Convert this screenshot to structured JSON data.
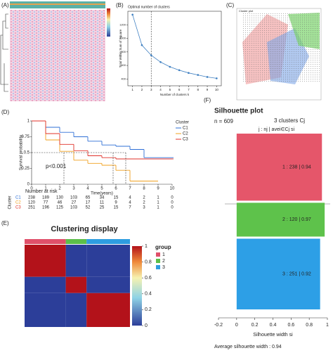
{
  "chart_data": [
    {
      "type": "heatmap_image",
      "label": "(A)"
    },
    {
      "type": "line",
      "label": "(B)",
      "title": "Optimal number of clusters",
      "xlabel": "Number of clusters k",
      "ylabel": "Total Within Sum of Square",
      "x": [
        1,
        2,
        3,
        4,
        5,
        6,
        7,
        8,
        9,
        10
      ],
      "values": [
        1350,
        900,
        750,
        650,
        580,
        530,
        490,
        460,
        430,
        410
      ],
      "color": "#3e7fc1",
      "xlim": [
        0.5,
        10.5
      ],
      "xticks": [
        1,
        2,
        3,
        4,
        5,
        6,
        7,
        8,
        9,
        10
      ],
      "ylim": [
        300,
        1400
      ],
      "yticks": [
        400,
        600,
        800,
        1000,
        1200
      ],
      "vline": 3
    },
    {
      "type": "cluster_image",
      "label": "(C)",
      "title": "Cluster plot"
    },
    {
      "type": "survival",
      "label": "(D)",
      "xlabel": "Time(years)",
      "ylabel": "Survival probability",
      "annotation": "p<0.001",
      "legend_title": "Cluster",
      "x": [
        0,
        1,
        2,
        3,
        4,
        5,
        6,
        7,
        8,
        9,
        10
      ],
      "series": [
        {
          "name": "C1",
          "color": "#2e6fd6",
          "values": [
            1,
            0.9,
            0.82,
            0.75,
            0.68,
            0.62,
            0.6,
            0.55,
            0.42,
            0.42,
            0.42
          ]
        },
        {
          "name": "C2",
          "color": "#f0a01e",
          "values": [
            1,
            0.7,
            0.52,
            0.38,
            0.33,
            0.3,
            0.22,
            0.05,
            0.05,
            null,
            null
          ]
        },
        {
          "name": "C3",
          "color": "#e0322a",
          "values": [
            1,
            0.8,
            0.63,
            0.53,
            0.45,
            0.42,
            0.4,
            0.4,
            0.4,
            0.4,
            0.4
          ]
        }
      ],
      "xlim": [
        0,
        10
      ],
      "xticks": [
        0,
        1,
        2,
        3,
        4,
        5,
        6,
        7,
        8,
        9,
        10
      ],
      "ylim": [
        0,
        1
      ],
      "yticks": [
        0,
        0.25,
        0.5,
        0.75,
        1
      ],
      "median_x": [
        2.3,
        5.8,
        6.7
      ],
      "median_y": 0.5,
      "risk_table": {
        "title": "Number at risk",
        "ylabel": "Cluster",
        "rows": [
          [
            238,
            189,
            130,
            103,
            65,
            34,
            15,
            4,
            2,
            1,
            0
          ],
          [
            120,
            77,
            46,
            27,
            17,
            11,
            9,
            4,
            2,
            1,
            0
          ],
          [
            251,
            196,
            125,
            103,
            52,
            25,
            15,
            7,
            3,
            1,
            0
          ]
        ]
      }
    },
    {
      "type": "consensus",
      "label": "(E)",
      "title": "Clustering display",
      "legend_title": "group",
      "groups": [
        "1",
        "2",
        "3"
      ],
      "group_sizes": [
        238,
        120,
        251
      ],
      "group_colors": [
        "#e0506a",
        "#5cbf4a",
        "#2e9de0"
      ],
      "matrix": [
        [
          1,
          0,
          0
        ],
        [
          0,
          1,
          0
        ],
        [
          0,
          0,
          1
        ]
      ],
      "zlim": [
        0,
        1
      ],
      "zticks": [
        0,
        0.2,
        0.4,
        0.6,
        0.8,
        1
      ]
    },
    {
      "type": "silhouette",
      "label": "(F)",
      "title": "Silhouette plot",
      "n_label": "n = 609",
      "clusters_label": "3  clusters  Cj",
      "column_label": "j :  nj | avei∈Cj  si",
      "xlabel": "Silhouette width si",
      "footer": "Average silhouette width :  0.94",
      "categories": [
        "1",
        "2",
        "3"
      ],
      "sizes": [
        238,
        120,
        251
      ],
      "values": [
        0.94,
        0.97,
        0.92
      ],
      "value_labels": [
        "1 :  238  |  0.94",
        "2 :  120  |  0.97",
        "3 :  251  |  0.92"
      ],
      "colors": [
        "#e5566a",
        "#5ec24b",
        "#2d9fe6"
      ],
      "xlim": [
        -0.2,
        1
      ],
      "xticks": [
        -0.2,
        0,
        0.2,
        0.4,
        0.6,
        0.8,
        1
      ]
    }
  ]
}
